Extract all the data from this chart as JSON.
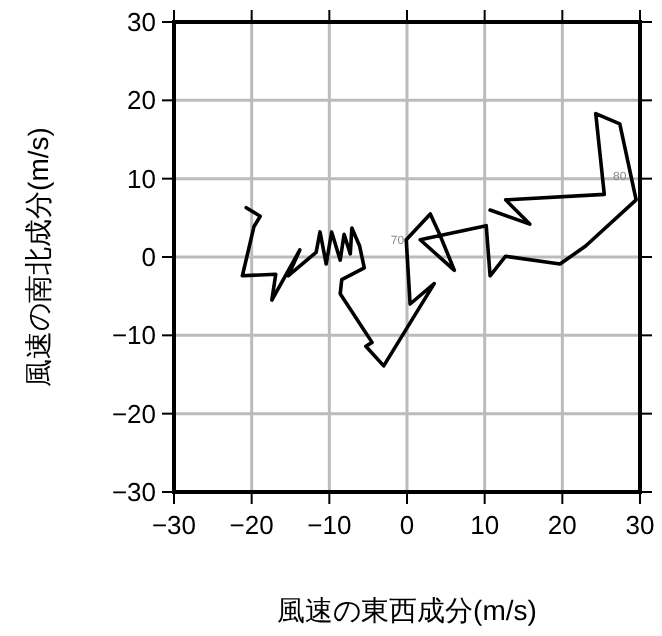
{
  "chart_data": {
    "type": "line",
    "xlabel": "風速の東西成分(m/s)",
    "ylabel": "風速の南北成分(m/s)",
    "xlim": [
      -30,
      30
    ],
    "ylim": [
      -30,
      30
    ],
    "xticks": [
      {
        "value": -30,
        "label": "−30"
      },
      {
        "value": -20,
        "label": "−20"
      },
      {
        "value": -10,
        "label": "−10"
      },
      0,
      10,
      20,
      30
    ],
    "yticks": [
      {
        "value": -30,
        "label": "−30"
      },
      {
        "value": -20,
        "label": "−20"
      },
      {
        "value": -10,
        "label": "−10"
      },
      0,
      10,
      20,
      30
    ],
    "grid": true,
    "marker": "none",
    "line_style": "solid",
    "series": [
      {
        "color": "#000000",
        "x": [
          -20.7,
          -18.9,
          -19.7,
          -21.2,
          -16.9,
          -17.4,
          -13.8,
          -15.3,
          -11.7,
          -11.2,
          -10.4,
          -9.7,
          -8.6,
          -8.1,
          -7.3,
          -7.1,
          -6.1,
          -5.5,
          -8.4,
          -8.6,
          -4.5,
          -5.3,
          -3.0,
          3.5,
          0.4,
          -0.1,
          3.0,
          4.2,
          6.1,
          1.7,
          10.2,
          10.7,
          12.7,
          19.7,
          23.0,
          29.5,
          27.4,
          24.3,
          25.4,
          12.7,
          15.8,
          10.7
        ],
        "values": [
          6.3,
          5.2,
          3.9,
          -2.4,
          -2.2,
          -5.5,
          0.9,
          -2.4,
          0.6,
          3.2,
          -0.9,
          3.2,
          -0.4,
          2.9,
          0.4,
          3.7,
          1.4,
          -1.4,
          -2.9,
          -4.7,
          -10.9,
          -11.4,
          -13.9,
          -3.4,
          -6.0,
          2.2,
          5.5,
          2.9,
          -1.7,
          2.2,
          4.0,
          -2.4,
          0.1,
          -0.9,
          1.4,
          7.3,
          17.0,
          18.3,
          8.0,
          7.3,
          4.2,
          6.0
        ]
      }
    ],
    "annotations": [
      {
        "text": "70",
        "x": -0.1,
        "y": 2.2
      },
      {
        "text": "80",
        "x": 28.5,
        "y": 10.3
      }
    ]
  }
}
